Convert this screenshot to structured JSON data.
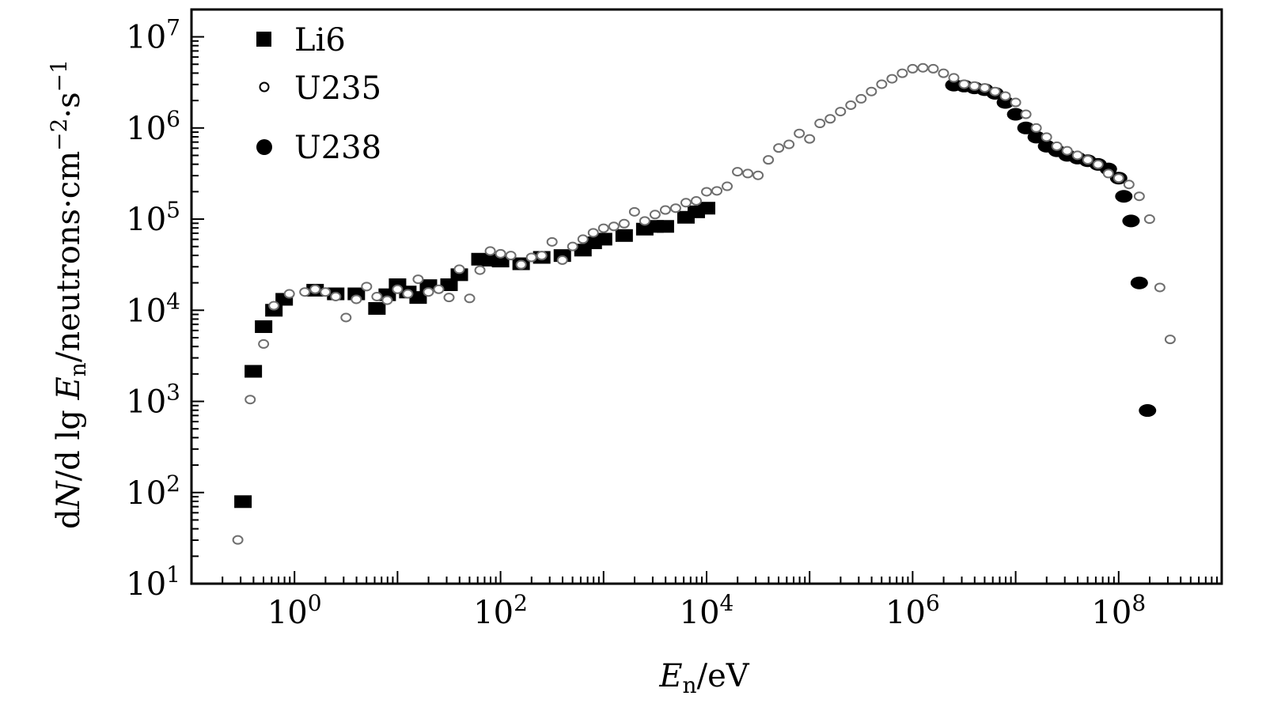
{
  "chart_data": {
    "type": "scatter",
    "x_scale": "log",
    "y_scale": "log",
    "xlim_log10": [
      -1,
      9
    ],
    "ylim_log10": [
      1,
      7.3
    ],
    "xlabel": {
      "main": "E",
      "sub": "n",
      "rest": "/eV"
    },
    "ylabel": {
      "d1": "d",
      "N": "N",
      "mid": "/d lg ",
      "E": "E",
      "sub": "n",
      "unit": "/neutrons·cm",
      "exp1": "−2",
      "dot": "·s",
      "exp2": "−1"
    },
    "x_ticks": [
      {
        "base": "10",
        "exp": "0",
        "log": 0
      },
      {
        "base": "10",
        "exp": "2",
        "log": 2
      },
      {
        "base": "10",
        "exp": "4",
        "log": 4
      },
      {
        "base": "10",
        "exp": "6",
        "log": 6
      },
      {
        "base": "10",
        "exp": "8",
        "log": 8
      }
    ],
    "y_ticks": [
      {
        "base": "10",
        "exp": "1",
        "log": 1
      },
      {
        "base": "10",
        "exp": "2",
        "log": 2
      },
      {
        "base": "10",
        "exp": "3",
        "log": 3
      },
      {
        "base": "10",
        "exp": "4",
        "log": 4
      },
      {
        "base": "10",
        "exp": "5",
        "log": 5
      },
      {
        "base": "10",
        "exp": "6",
        "log": 6
      },
      {
        "base": "10",
        "exp": "7",
        "log": 7
      }
    ],
    "legend_position": "top-left",
    "series": [
      {
        "name": "Li6",
        "marker": "square",
        "color": "#000000",
        "x_log10": [
          -0.5,
          -0.4,
          -0.3,
          -0.2,
          -0.1,
          0.2,
          0.4,
          0.6,
          0.8,
          0.9,
          1.0,
          1.1,
          1.2,
          1.3,
          1.5,
          1.6,
          1.8,
          1.9,
          2.0,
          2.2,
          2.4,
          2.6,
          2.8,
          2.9,
          3.0,
          3.2,
          3.4,
          3.5,
          3.6,
          3.8,
          3.9,
          4.0
        ],
        "y_log10": [
          1.9,
          3.33,
          3.82,
          4.0,
          4.12,
          4.22,
          4.18,
          4.18,
          4.02,
          4.17,
          4.28,
          4.2,
          4.14,
          4.27,
          4.28,
          4.39,
          4.56,
          4.55,
          4.54,
          4.51,
          4.58,
          4.6,
          4.66,
          4.74,
          4.78,
          4.82,
          4.89,
          4.92,
          4.92,
          5.02,
          5.08,
          5.12
        ]
      },
      {
        "name": "U235",
        "marker": "open-circle",
        "color": "#6e6e6e",
        "x_log10": [
          -0.55,
          -0.43,
          -0.3,
          -0.2,
          -0.05,
          0.1,
          0.2,
          0.3,
          0.4,
          0.5,
          0.6,
          0.7,
          0.8,
          0.9,
          1.0,
          1.1,
          1.2,
          1.3,
          1.4,
          1.5,
          1.6,
          1.7,
          1.8,
          1.9,
          2.0,
          2.1,
          2.2,
          2.3,
          2.4,
          2.5,
          2.6,
          2.7,
          2.8,
          2.9,
          3.0,
          3.1,
          3.2,
          3.3,
          3.4,
          3.5,
          3.6,
          3.7,
          3.8,
          3.9,
          4.0,
          4.1,
          4.2,
          4.3,
          4.4,
          4.5,
          4.6,
          4.7,
          4.8,
          4.9,
          5.0,
          5.1,
          5.2,
          5.3,
          5.4,
          5.5,
          5.6,
          5.7,
          5.8,
          5.9,
          6.0,
          6.1,
          6.2,
          6.3,
          6.4,
          6.5,
          6.6,
          6.7,
          6.8,
          6.9,
          7.0,
          7.1,
          7.2,
          7.3,
          7.4,
          7.5,
          7.6,
          7.7,
          7.8,
          7.9,
          8.0,
          8.1,
          8.2,
          8.3,
          8.4,
          8.5
        ],
        "y_log10": [
          1.48,
          3.02,
          3.63,
          4.05,
          4.18,
          4.2,
          4.23,
          4.2,
          4.15,
          3.92,
          4.12,
          4.26,
          4.15,
          4.11,
          4.23,
          4.18,
          4.34,
          4.2,
          4.23,
          4.14,
          4.45,
          4.13,
          4.44,
          4.65,
          4.62,
          4.6,
          4.5,
          4.58,
          4.6,
          4.75,
          4.55,
          4.7,
          4.78,
          4.85,
          4.9,
          4.92,
          4.95,
          5.08,
          4.98,
          5.05,
          5.1,
          5.12,
          5.18,
          5.2,
          5.3,
          5.31,
          5.36,
          5.52,
          5.5,
          5.48,
          5.65,
          5.78,
          5.82,
          5.94,
          5.88,
          6.05,
          6.1,
          6.18,
          6.25,
          6.32,
          6.4,
          6.48,
          6.54,
          6.6,
          6.65,
          6.66,
          6.65,
          6.6,
          6.55,
          6.48,
          6.46,
          6.44,
          6.4,
          6.35,
          6.28,
          6.15,
          6.0,
          5.9,
          5.8,
          5.75,
          5.7,
          5.65,
          5.6,
          5.5,
          5.45,
          5.38,
          5.25,
          5.0,
          4.25,
          3.68
        ]
      },
      {
        "name": "U238",
        "marker": "filled-circle",
        "color": "#000000",
        "x_log10": [
          6.4,
          6.5,
          6.6,
          6.7,
          6.8,
          6.9,
          7.0,
          7.1,
          7.2,
          7.3,
          7.4,
          7.5,
          7.6,
          7.7,
          7.8,
          7.9,
          8.0,
          8.05,
          8.12,
          8.2,
          8.28
        ],
        "y_log10": [
          6.47,
          6.46,
          6.44,
          6.42,
          6.38,
          6.28,
          6.15,
          6.0,
          5.9,
          5.8,
          5.75,
          5.7,
          5.67,
          5.64,
          5.6,
          5.55,
          5.45,
          5.25,
          4.98,
          4.3,
          2.9
        ]
      }
    ]
  }
}
